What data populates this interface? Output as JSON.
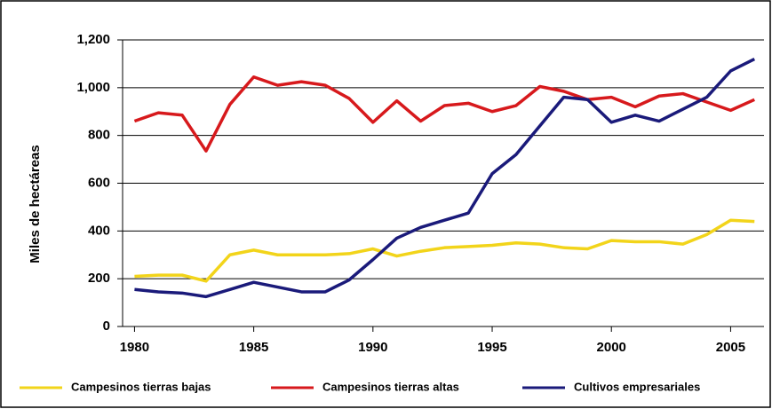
{
  "chart_data": {
    "type": "line",
    "y_label": "Miles de hectáreas",
    "x": [
      1980,
      1981,
      1982,
      1983,
      1984,
      1985,
      1986,
      1987,
      1988,
      1989,
      1990,
      1991,
      1992,
      1993,
      1994,
      1995,
      1996,
      1997,
      1998,
      1999,
      2000,
      2001,
      2002,
      2003,
      2004,
      2005,
      2006
    ],
    "series": [
      {
        "name": "Campesinos tierras bajas",
        "color": "#f2d41a",
        "values": [
          210,
          215,
          215,
          190,
          300,
          320,
          300,
          300,
          300,
          305,
          325,
          295,
          315,
          330,
          335,
          340,
          350,
          345,
          330,
          325,
          360,
          355,
          355,
          345,
          385,
          445,
          440
        ]
      },
      {
        "name": "Campesinos tierras altas",
        "color": "#d7191c",
        "values": [
          860,
          895,
          885,
          735,
          930,
          1045,
          1010,
          1025,
          1010,
          955,
          855,
          945,
          860,
          925,
          935,
          900,
          925,
          1005,
          985,
          950,
          960,
          920,
          965,
          975,
          940,
          905,
          950
        ]
      },
      {
        "name": "Cultivos empresariales",
        "color": "#1a1a7a",
        "values": [
          155,
          145,
          140,
          125,
          155,
          185,
          165,
          145,
          145,
          195,
          280,
          370,
          415,
          445,
          475,
          640,
          720,
          840,
          960,
          950,
          855,
          885,
          860,
          910,
          960,
          1070,
          1120
        ]
      }
    ],
    "xlim": [
      1979.5,
      2006.4
    ],
    "xticks": [
      1980,
      1985,
      1990,
      1995,
      2000,
      2005
    ],
    "ylim": [
      0,
      1200
    ],
    "yticks": [
      0,
      200,
      400,
      600,
      800,
      {
        "value": 1000,
        "label": "1,000"
      },
      {
        "value": 1200,
        "label": "1,200"
      }
    ],
    "grid": true,
    "legend": "bottom"
  }
}
